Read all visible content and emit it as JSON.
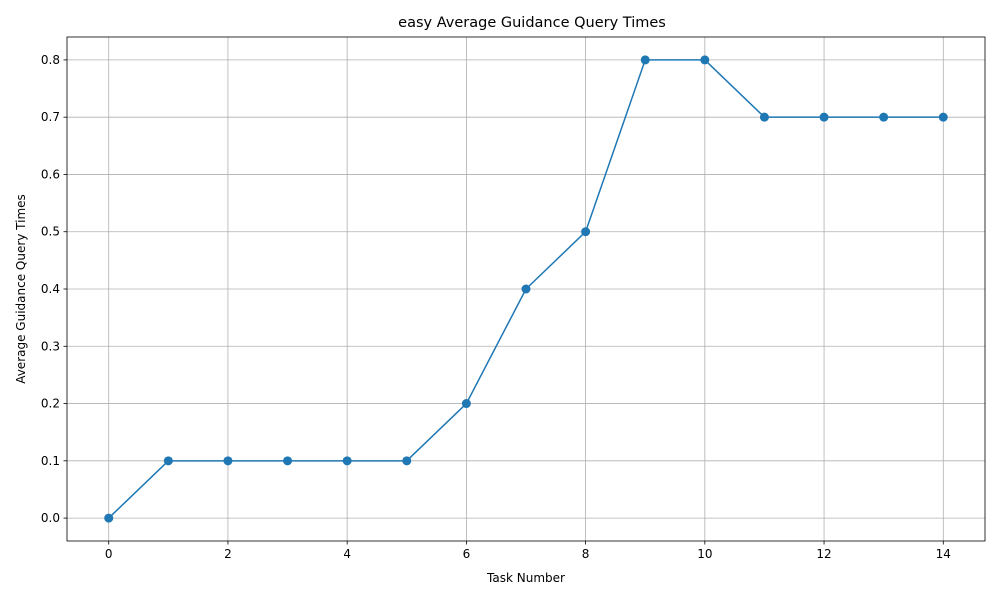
{
  "chart_data": {
    "type": "line",
    "title": "easy Average Guidance Query Times",
    "xlabel": "Task Number",
    "ylabel": "Average Guidance Query Times",
    "xlim": [
      -0.7,
      14.7
    ],
    "ylim": [
      -0.04,
      0.84
    ],
    "xticks": [
      0,
      2,
      4,
      6,
      8,
      10,
      12,
      14
    ],
    "xtick_labels": [
      "0",
      "2",
      "4",
      "6",
      "8",
      "10",
      "12",
      "14"
    ],
    "yticks": [
      0.0,
      0.1,
      0.2,
      0.3,
      0.4,
      0.5,
      0.6,
      0.7,
      0.8
    ],
    "ytick_labels": [
      "0.0",
      "0.1",
      "0.2",
      "0.3",
      "0.4",
      "0.5",
      "0.6",
      "0.7",
      "0.8"
    ],
    "grid": true,
    "marker": "circle",
    "series": [
      {
        "color": "#1f77b4",
        "x": [
          0,
          1,
          2,
          3,
          4,
          5,
          6,
          7,
          8,
          9,
          10,
          11,
          12,
          13,
          14
        ],
        "y": [
          0.0,
          0.1,
          0.1,
          0.1,
          0.1,
          0.1,
          0.2,
          0.4,
          0.5,
          0.8,
          0.8,
          0.7,
          0.7,
          0.7,
          0.7
        ]
      }
    ]
  }
}
